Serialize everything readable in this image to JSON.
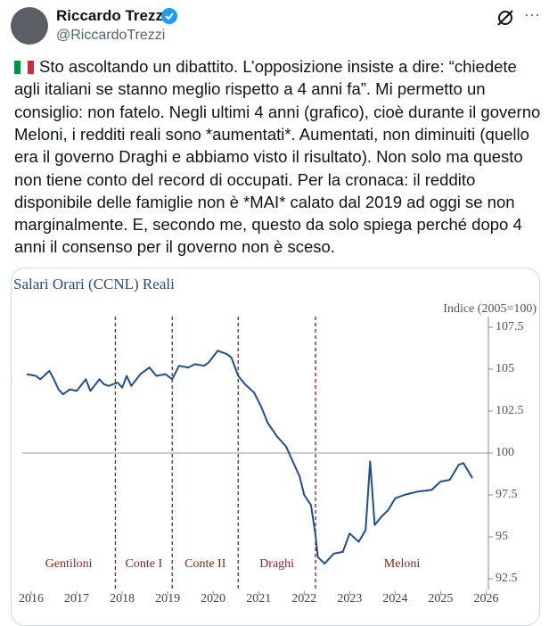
{
  "tweet": {
    "author": {
      "name": "Riccardo Trezzi",
      "handle": "@RiccardoTrezzi"
    },
    "text_lines": [
      "Sto ascoltando un dibattito. L’opposizione insiste a dire: “chiedete",
      "agli italiani se stanno meglio rispetto a 4 anni fa”. Mi permetto un",
      "consiglio: non fatelo. Negli ultimi 4 anni (grafico), cioè durante il governo",
      "Meloni, i redditi reali sono *aumentati*. Aumentati, non diminuiti (quello",
      "era il governo Draghi e abbiamo visto il risultato). Non solo ma questo",
      "non tiene conto del record di occupati. Per la cronaca: il reddito",
      "disponibile delle famiglie non è *MAI* calato dal 2019 ad oggi se non",
      "marginalmente. E, secondo me, questo da solo spiega perché dopo 4",
      "anni il consenso per il governo non è sceso."
    ]
  },
  "chart_data": {
    "type": "line",
    "title": "Salari Orari (CCNL) Reali",
    "y_axis_label": "Indice (2005=100)",
    "color": "#1f4e8c",
    "x": [
      2015.9,
      2016.1,
      2016.2,
      2016.4,
      2016.5,
      2016.6,
      2016.7,
      2016.85,
      2017.0,
      2017.2,
      2017.3,
      2017.5,
      2017.6,
      2017.7,
      2017.9,
      2018.0,
      2018.1,
      2018.2,
      2018.4,
      2018.6,
      2018.75,
      2018.95,
      2019.1,
      2019.25,
      2019.45,
      2019.6,
      2019.8,
      2019.9,
      2020.1,
      2020.3,
      2020.4,
      2020.55,
      2020.7,
      2020.9,
      2021.05,
      2021.2,
      2021.4,
      2021.6,
      2021.75,
      2021.9,
      2022.0,
      2022.15,
      2022.25,
      2022.3,
      2022.45,
      2022.65,
      2022.85,
      2023.0,
      2023.2,
      2023.35,
      2023.45,
      2023.55,
      2023.7,
      2023.85,
      2024.0,
      2024.2,
      2024.5,
      2024.8,
      2025.0,
      2025.2,
      2025.4,
      2025.5,
      2025.7
    ],
    "values": [
      104.7,
      104.6,
      104.4,
      104.9,
      104.4,
      103.8,
      103.5,
      103.8,
      103.7,
      104.4,
      103.7,
      104.4,
      104.1,
      104.0,
      104.2,
      103.9,
      104.6,
      104.0,
      104.7,
      105.1,
      104.6,
      104.7,
      104.4,
      105.2,
      105.1,
      105.3,
      105.2,
      105.4,
      106.1,
      105.9,
      105.7,
      104.6,
      104.1,
      103.6,
      102.8,
      101.8,
      101.0,
      100.4,
      99.5,
      98.6,
      97.5,
      96.9,
      95.1,
      93.8,
      93.4,
      94.0,
      94.1,
      95.2,
      94.7,
      95.4,
      99.5,
      95.7,
      96.2,
      96.6,
      97.3,
      97.5,
      97.7,
      97.8,
      98.3,
      98.4,
      99.3,
      99.4,
      98.5
    ],
    "xlim": [
      2015.8,
      2026.05
    ],
    "ylim": [
      92.5,
      107.5
    ],
    "xticks": [
      2016,
      2017,
      2018,
      2019,
      2020,
      2021,
      2022,
      2023,
      2024,
      2025,
      2026
    ],
    "yticks": [
      92.5,
      95.0,
      97.5,
      100.0,
      102.5,
      105.0,
      107.5
    ],
    "reference_line": 100,
    "periods": {
      "labels": [
        "Gentiloni",
        "Conte I",
        "Conte II",
        "Draghi",
        "Meloni"
      ],
      "boundaries": [
        2017.85,
        2019.1,
        2020.55,
        2022.25
      ]
    }
  }
}
